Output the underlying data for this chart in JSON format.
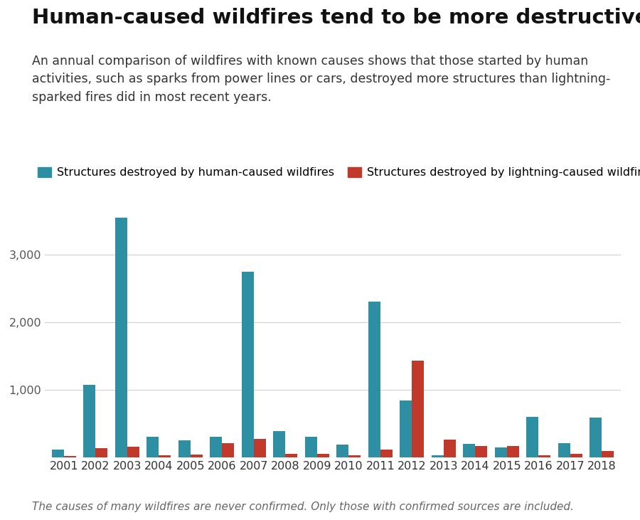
{
  "title": "Human-caused wildfires tend to be more destructive",
  "subtitle": "An annual comparison of wildfires with known causes shows that those started by human\nactivities, such as sparks from power lines or cars, destroyed more structures than lightning-\nsparked fires did in most recent years.",
  "footnote": "The causes of many wildfires are never confirmed. Only those with confirmed sources are included.",
  "years": [
    2001,
    2002,
    2003,
    2004,
    2005,
    2006,
    2007,
    2008,
    2009,
    2010,
    2011,
    2012,
    2013,
    2014,
    2015,
    2016,
    2017,
    2018
  ],
  "human_values": [
    120,
    1075,
    3550,
    310,
    255,
    310,
    2750,
    390,
    310,
    195,
    2310,
    850,
    30,
    200,
    155,
    600,
    215,
    590
  ],
  "lightning_values": [
    20,
    145,
    165,
    35,
    50,
    215,
    275,
    60,
    55,
    30,
    115,
    1430,
    270,
    170,
    170,
    35,
    55,
    100
  ],
  "human_color": "#2e8fa3",
  "lightning_color": "#c0392b",
  "ylim": [
    0,
    4000
  ],
  "yticks": [
    0,
    1000,
    2000,
    3000
  ],
  "ytick_labels": [
    "",
    "1,000",
    "2,000",
    "3,000"
  ],
  "human_label": "Structures destroyed by human-caused wildfires",
  "lightning_label": "Structures destroyed by lightning-caused wildfires",
  "background_color": "#ffffff",
  "grid_color": "#d0d0d0",
  "title_fontsize": 21,
  "subtitle_fontsize": 12.5,
  "legend_fontsize": 11.5,
  "tick_fontsize": 11.5,
  "footnote_fontsize": 11
}
